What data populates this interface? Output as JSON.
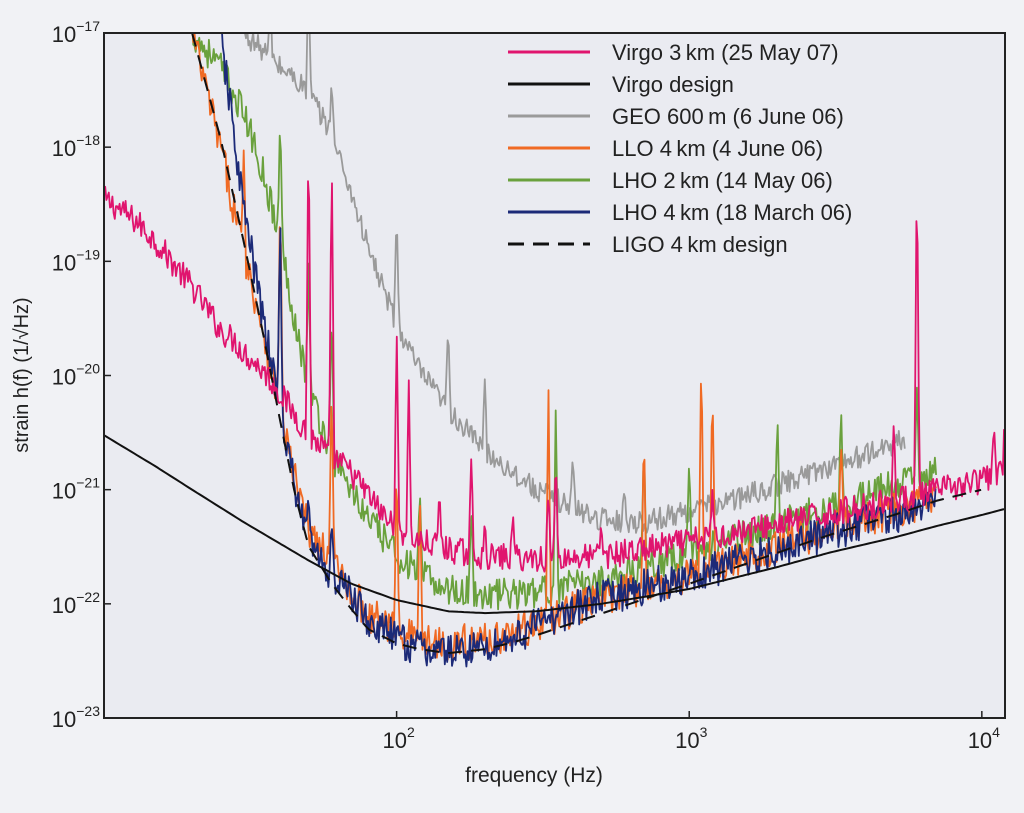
{
  "chart_data": {
    "type": "line",
    "xlabel": "frequency (Hz)",
    "ylabel": "strain h(f) (1/√Hz)",
    "xscale": "log",
    "yscale": "log",
    "xlim": [
      10,
      12000
    ],
    "ylim": [
      1e-23,
      1e-17
    ],
    "grid": false,
    "legend_position": "top-right",
    "x_ticks": [
      {
        "value": 100,
        "base": "10",
        "exp": "2"
      },
      {
        "value": 1000,
        "base": "10",
        "exp": "3"
      },
      {
        "value": 10000,
        "base": "10",
        "exp": "4"
      }
    ],
    "y_ticks": [
      {
        "value": 1e-17,
        "base": "10",
        "exp": "−17"
      },
      {
        "value": 1e-18,
        "base": "10",
        "exp": "−18"
      },
      {
        "value": 1e-19,
        "base": "10",
        "exp": "−19"
      },
      {
        "value": 1e-20,
        "base": "10",
        "exp": "−20"
      },
      {
        "value": 1e-21,
        "base": "10",
        "exp": "−21"
      },
      {
        "value": 1e-22,
        "base": "10",
        "exp": "−22"
      },
      {
        "value": 1e-23,
        "base": "10",
        "exp": "−23"
      }
    ],
    "series": [
      {
        "name": "Virgo 3 km (25 May 07)",
        "color": "#e0146e",
        "dash": "solid",
        "noise": 0.12,
        "x": [
          10,
          11,
          13,
          15,
          17,
          20,
          23,
          25,
          28,
          30,
          35,
          40,
          45,
          50,
          60,
          70,
          80,
          90,
          100,
          120,
          150,
          200,
          300,
          500,
          1000,
          2000,
          5000,
          10000,
          12000
        ],
        "y": [
          3.5e-19,
          3e-19,
          2.2e-19,
          1.5e-19,
          1e-19,
          6e-20,
          3.5e-20,
          2.5e-20,
          2e-20,
          1.6e-20,
          1.1e-20,
          7e-21,
          4.5e-21,
          3e-21,
          2e-21,
          1.4e-21,
          9e-22,
          6e-22,
          4.5e-22,
          3.5e-22,
          3e-22,
          2.6e-22,
          2.5e-22,
          2.6e-22,
          3.5e-22,
          5e-22,
          8e-22,
          1.2e-21,
          1.4e-21
        ],
        "spikes": [
          [
            50,
            2e-18
          ],
          [
            60,
            1e-18
          ],
          [
            100,
            3e-20
          ],
          [
            110,
            1e-20
          ],
          [
            140,
            1e-21
          ],
          [
            180,
            2e-21
          ],
          [
            200,
            5e-22
          ],
          [
            250,
            6e-22
          ],
          [
            330,
            1e-21
          ],
          [
            350,
            2e-21
          ],
          [
            500,
            5e-22
          ],
          [
            1200,
            1e-21
          ],
          [
            5000,
            4e-21
          ],
          [
            6000,
            1e-18
          ],
          [
            11000,
            4e-21
          ],
          [
            12000,
            6e-21
          ]
        ]
      },
      {
        "name": "Virgo design",
        "color": "#111111",
        "dash": "solid",
        "noise": 0,
        "x": [
          10,
          15,
          20,
          30,
          50,
          70,
          100,
          150,
          200,
          300,
          500,
          700,
          1000,
          2000,
          3000,
          5000,
          7000,
          10000,
          12000
        ],
        "y": [
          3e-21,
          1.6e-21,
          1e-21,
          5.2e-22,
          2.4e-22,
          1.5e-22,
          1.08e-22,
          8.6e-23,
          8.3e-23,
          8.6e-23,
          1e-22,
          1.15e-22,
          1.35e-22,
          2.1e-22,
          2.8e-22,
          3.8e-22,
          4.8e-22,
          6e-22,
          6.8e-22
        ],
        "spikes": []
      },
      {
        "name": "GEO 600 m (6 June 06)",
        "color": "#9a9a9a",
        "dash": "solid",
        "noise": 0.1,
        "x": [
          30,
          35,
          40,
          45,
          50,
          60,
          70,
          80,
          100,
          120,
          150,
          200,
          300,
          400,
          500,
          700,
          1000,
          1500,
          2000,
          3000,
          4000,
          5500
        ],
        "y": [
          1e-17,
          7e-18,
          5e-18,
          4e-18,
          3e-18,
          1.3e-18,
          4e-19,
          1.3e-19,
          2.8e-20,
          1.1e-20,
          5e-21,
          2.2e-21,
          1e-21,
          7e-22,
          5.5e-22,
          5.2e-22,
          6.5e-22,
          8.5e-22,
          1.1e-21,
          1.6e-21,
          2e-21,
          2.8e-21
        ],
        "spikes": [
          [
            37,
            2e-17
          ],
          [
            50,
            3e-17
          ],
          [
            60,
            4e-18
          ],
          [
            100,
            3e-19
          ],
          [
            150,
            3e-20
          ],
          [
            200,
            1e-20
          ],
          [
            400,
            2e-21
          ],
          [
            600,
            1e-21
          ]
        ]
      },
      {
        "name": "LLO 4 km (4 June 06)",
        "color": "#f06a24",
        "dash": "solid",
        "noise": 0.16,
        "x": [
          20,
          25,
          30,
          35,
          40,
          45,
          50,
          60,
          70,
          80,
          100,
          120,
          150,
          200,
          250,
          300,
          400,
          500,
          700,
          1000,
          1500,
          2000,
          3000,
          5000,
          7000
        ],
        "y": [
          1e-17,
          1e-18,
          1.2e-19,
          2.5e-20,
          5e-21,
          1.2e-21,
          4.5e-22,
          2.2e-22,
          1.3e-22,
          8e-23,
          6e-23,
          5e-23,
          4.5e-23,
          4.8e-23,
          5.5e-23,
          6.5e-23,
          9e-23,
          1.1e-22,
          1.4e-22,
          1.8e-22,
          2.5e-22,
          3.2e-22,
          4.5e-22,
          6.5e-22,
          8e-22
        ],
        "spikes": [
          [
            30,
            1e-18
          ],
          [
            40,
            5e-19
          ],
          [
            60,
            1e-20
          ],
          [
            100,
            2e-21
          ],
          [
            120,
            1e-21
          ],
          [
            330,
            1e-20
          ],
          [
            700,
            4e-21
          ],
          [
            1100,
            2e-20
          ],
          [
            1200,
            1e-20
          ],
          [
            3300,
            3e-21
          ],
          [
            6000,
            1e-21
          ]
        ]
      },
      {
        "name": "LHO 2 km (14 May 06)",
        "color": "#6aa13d",
        "dash": "solid",
        "noise": 0.14,
        "x": [
          20,
          25,
          30,
          35,
          40,
          45,
          50,
          60,
          70,
          80,
          100,
          120,
          150,
          200,
          300,
          500,
          700,
          1000,
          1500,
          2000,
          3000,
          5000,
          7000
        ],
        "y": [
          1e-17,
          5e-18,
          2e-18,
          6e-19,
          1.5e-19,
          3e-20,
          8e-21,
          2e-21,
          1e-21,
          5.5e-22,
          2.7e-22,
          1.8e-22,
          1.35e-22,
          1.2e-22,
          1.25e-22,
          1.6e-22,
          2.1e-22,
          2.8e-22,
          3.8e-22,
          5e-22,
          7e-22,
          1.1e-21,
          1.4e-21
        ],
        "spikes": [
          [
            40,
            2e-18
          ],
          [
            50,
            1e-19
          ],
          [
            60,
            4e-20
          ],
          [
            120,
            1e-21
          ],
          [
            180,
            8e-22
          ],
          [
            350,
            6e-21
          ],
          [
            700,
            3e-21
          ],
          [
            1000,
            2e-21
          ],
          [
            2000,
            5e-21
          ],
          [
            3300,
            6e-21
          ],
          [
            6000,
            8e-21
          ]
        ]
      },
      {
        "name": "LHO 4 km (18 March 06)",
        "color": "#1c2a78",
        "dash": "solid",
        "noise": 0.16,
        "x": [
          25,
          30,
          35,
          40,
          45,
          50,
          60,
          70,
          80,
          100,
          120,
          150,
          200,
          250,
          300,
          400,
          500,
          700,
          1000,
          1500,
          2000,
          3000,
          5000,
          7000
        ],
        "y": [
          1e-17,
          3e-19,
          3e-20,
          5e-21,
          1e-21,
          3.5e-22,
          1.8e-22,
          1.2e-22,
          7e-23,
          5e-23,
          4e-23,
          3.8e-23,
          4.2e-23,
          5e-23,
          6.5e-23,
          9e-23,
          1.1e-22,
          1.4e-22,
          1.7e-22,
          2.4e-22,
          3e-22,
          4.2e-22,
          6e-22,
          7.5e-22
        ],
        "spikes": [
          [
            40,
            3e-19
          ],
          [
            50,
            1e-21
          ],
          [
            60,
            5e-22
          ]
        ]
      },
      {
        "name": "LIGO 4 km design",
        "color": "#111111",
        "dash": "dashed",
        "noise": 0,
        "x": [
          20,
          25,
          30,
          35,
          40,
          45,
          50,
          60,
          70,
          80,
          100,
          120,
          150,
          200,
          250,
          300,
          400,
          500,
          700,
          1000,
          2000,
          3000,
          5000,
          7000,
          10000
        ],
        "y": [
          1e-17,
          1.2e-18,
          1.5e-19,
          2.3e-20,
          4e-21,
          9e-22,
          3.2e-22,
          1.5e-22,
          9e-23,
          6e-23,
          4.5e-23,
          4e-23,
          3.7e-23,
          4e-23,
          4.6e-23,
          5.3e-23,
          6.8e-23,
          8.2e-23,
          1.1e-22,
          1.5e-22,
          2.8e-22,
          4e-22,
          6e-22,
          8e-22,
          1e-21
        ],
        "spikes": []
      }
    ]
  }
}
